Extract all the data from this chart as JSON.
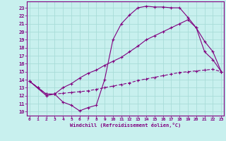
{
  "xlabel": "Windchill (Refroidissement éolien,°C)",
  "bg_color": "#c8f0ee",
  "line_color": "#800080",
  "grid_color": "#a8dcd8",
  "x_ticks": [
    0,
    1,
    2,
    3,
    4,
    5,
    6,
    7,
    8,
    9,
    10,
    11,
    12,
    13,
    14,
    15,
    16,
    17,
    18,
    19,
    20,
    21,
    22,
    23
  ],
  "y_ticks": [
    10,
    11,
    12,
    13,
    14,
    15,
    16,
    17,
    18,
    19,
    20,
    21,
    22,
    23
  ],
  "ylim": [
    9.5,
    23.8
  ],
  "xlim": [
    -0.3,
    23.3
  ],
  "line1_x": [
    0,
    1,
    2,
    3,
    4,
    5,
    6,
    7,
    8,
    9,
    10,
    11,
    12,
    13,
    14,
    15,
    16,
    17,
    18,
    19,
    20,
    21,
    22,
    23
  ],
  "line1_y": [
    13.8,
    13.0,
    12.2,
    12.2,
    11.2,
    10.8,
    10.1,
    10.5,
    10.8,
    14.0,
    19.0,
    21.0,
    22.1,
    23.0,
    23.2,
    23.1,
    23.1,
    23.0,
    23.0,
    21.8,
    20.5,
    17.5,
    16.5,
    15.0
  ],
  "line2_x": [
    0,
    2,
    3,
    4,
    5,
    6,
    7,
    8,
    9,
    10,
    11,
    12,
    13,
    14,
    15,
    16,
    17,
    18,
    19,
    20,
    21,
    22,
    23
  ],
  "line2_y": [
    13.8,
    12.0,
    12.2,
    13.0,
    13.5,
    14.2,
    14.8,
    15.2,
    15.8,
    16.3,
    16.8,
    17.5,
    18.2,
    19.0,
    19.5,
    20.0,
    20.5,
    21.0,
    21.5,
    20.5,
    18.8,
    17.5,
    15.0
  ],
  "line3_x": [
    0,
    1,
    2,
    3,
    4,
    5,
    6,
    7,
    8,
    9,
    10,
    11,
    12,
    13,
    14,
    15,
    16,
    17,
    18,
    19,
    20,
    21,
    22,
    23
  ],
  "line3_y": [
    13.8,
    13.0,
    12.2,
    12.2,
    12.3,
    12.4,
    12.5,
    12.6,
    12.8,
    13.0,
    13.2,
    13.4,
    13.6,
    13.9,
    14.1,
    14.3,
    14.5,
    14.7,
    14.9,
    15.0,
    15.1,
    15.2,
    15.3,
    15.0
  ]
}
